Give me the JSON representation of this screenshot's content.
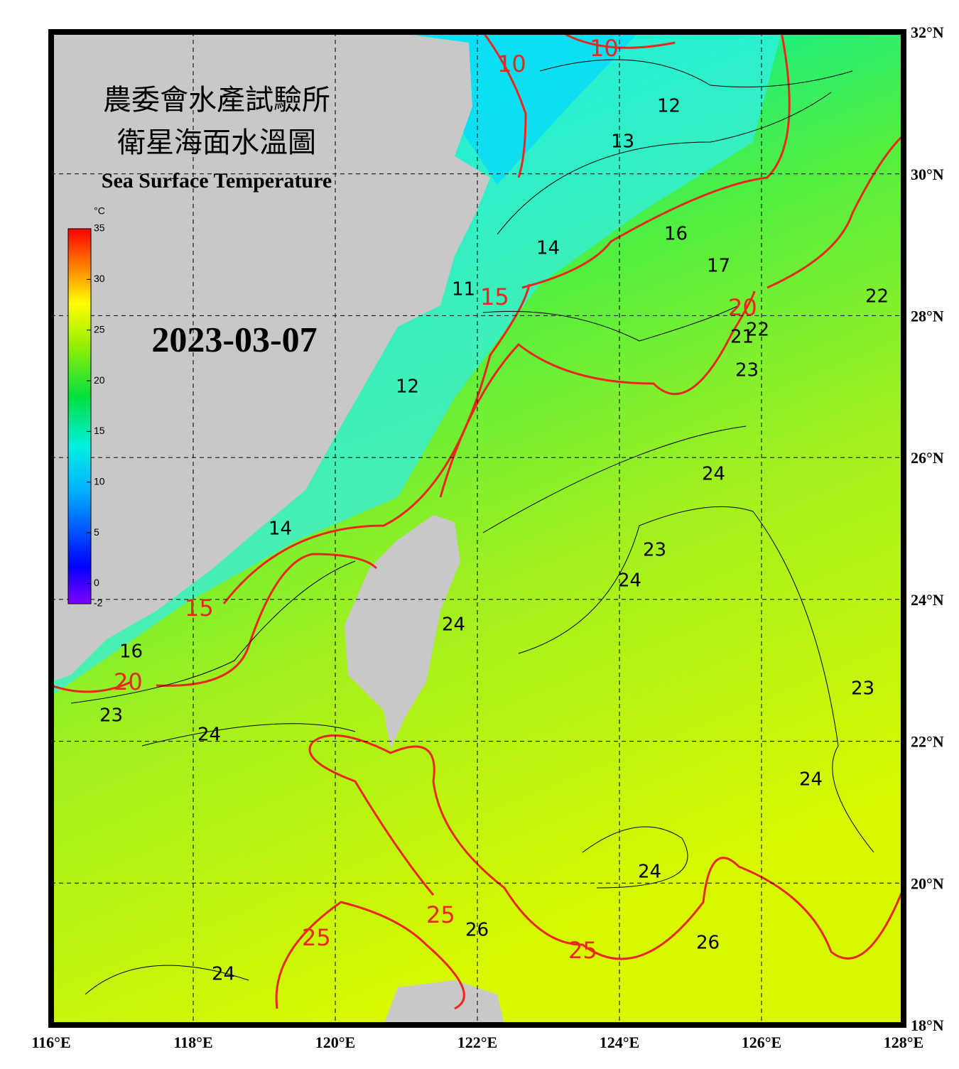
{
  "header": {
    "title_line1": "農委會水產試驗所",
    "title_line2": "衛星海面水溫圖",
    "title_en": "Sea Surface Temperature",
    "date": "2023-03-07"
  },
  "colorbar": {
    "unit": "°C",
    "lim": [
      -2,
      35
    ],
    "ticks": [
      35,
      30,
      25,
      20,
      15,
      10,
      5,
      0,
      -2
    ]
  },
  "map": {
    "xlim": [
      116,
      128
    ],
    "ylim": [
      18,
      32
    ],
    "xticks": [
      {
        "value": 116,
        "label": "116°E"
      },
      {
        "value": 118,
        "label": "118°E"
      },
      {
        "value": 120,
        "label": "120°E"
      },
      {
        "value": 122,
        "label": "122°E"
      },
      {
        "value": 124,
        "label": "124°E"
      },
      {
        "value": 126,
        "label": "126°E"
      },
      {
        "value": 128,
        "label": "128°E"
      }
    ],
    "yticks": [
      {
        "value": 18,
        "label": "18°N"
      },
      {
        "value": 20,
        "label": "20°N"
      },
      {
        "value": 22,
        "label": "22°N"
      },
      {
        "value": 24,
        "label": "24°N"
      },
      {
        "value": 26,
        "label": "26°N"
      },
      {
        "value": 28,
        "label": "28°N"
      },
      {
        "value": 30,
        "label": "30°N"
      },
      {
        "value": 32,
        "label": "32°N"
      }
    ]
  },
  "contour_labels": [
    10,
    10,
    12,
    13,
    16,
    17,
    22,
    14,
    15,
    11,
    12,
    20,
    21,
    22,
    23,
    24,
    23,
    24,
    14,
    15,
    16,
    20,
    23,
    24,
    24,
    23,
    24,
    24,
    25,
    25,
    26,
    26,
    25,
    24
  ]
}
